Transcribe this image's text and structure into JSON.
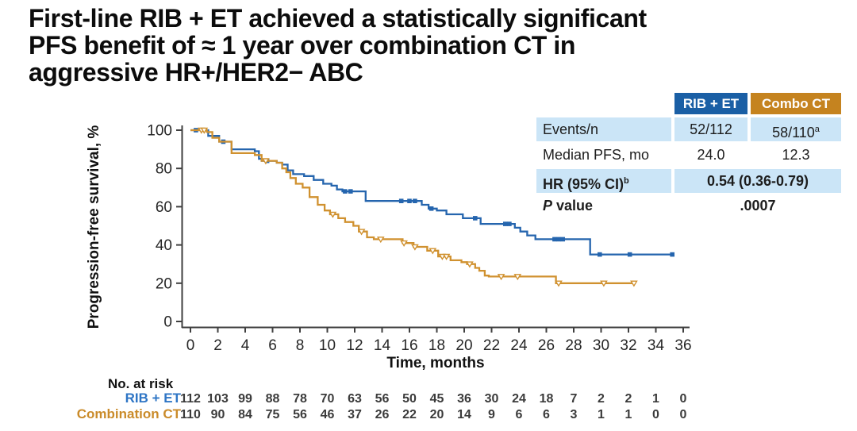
{
  "title": {
    "line1": "First-line RIB + ET achieved a statistically significant",
    "line2": "PFS benefit of ≈ 1 year over combination CT in",
    "line3": "aggressive HR+/HER2− ABC"
  },
  "colors": {
    "rib_blue": "#2565ae",
    "combo_orange": "#d0912f",
    "header_blue": "#1a5fa5",
    "header_orange": "#c5831f",
    "row_lightblue": "#cbe5f7",
    "axis": "#3f3f3f",
    "risk_label_blue": "#2e75c5",
    "risk_label_orange": "#ca8b2a",
    "risk_number": "#3b3b3b"
  },
  "stats_table": {
    "header": {
      "col1": "RIB + ET",
      "col2": "Combo CT"
    },
    "events": {
      "label": "Events/n",
      "rib": "52/112",
      "combo": "58/110",
      "combo_sup": "a"
    },
    "median": {
      "label": "Median PFS, mo",
      "rib": "24.0",
      "combo": "12.3"
    },
    "hr": {
      "label": "HR (95% CI)",
      "sup": "b",
      "value": "0.54 (0.36-0.79)"
    },
    "pvalue": {
      "label_p": "P",
      "label_rest": " value",
      "value": ".0007"
    }
  },
  "chart_data": {
    "type": "line",
    "subtype": "kaplan-meier-step",
    "ylabel": "Progression-free survival, %",
    "xlabel": "Time, months",
    "xlim": [
      0,
      36
    ],
    "ylim": [
      0,
      100
    ],
    "xticks": [
      0,
      2,
      4,
      6,
      8,
      10,
      12,
      14,
      16,
      18,
      20,
      22,
      24,
      26,
      28,
      30,
      32,
      34,
      36
    ],
    "yticks": [
      0,
      20,
      40,
      60,
      80,
      100
    ],
    "grid": false,
    "legend_position": "none",
    "series": [
      {
        "name": "RIB + ET",
        "color": "#2565ae",
        "marker": "filled-square",
        "median_pfs_months": 24.0,
        "steps": [
          [
            0,
            100
          ],
          [
            1.3,
            97
          ],
          [
            2.1,
            94
          ],
          [
            3.0,
            90
          ],
          [
            4.7,
            89
          ],
          [
            5.0,
            85
          ],
          [
            5.2,
            84
          ],
          [
            6.3,
            83
          ],
          [
            6.7,
            82
          ],
          [
            7.1,
            79
          ],
          [
            7.5,
            77
          ],
          [
            8.3,
            76
          ],
          [
            9.0,
            74
          ],
          [
            9.7,
            72
          ],
          [
            10.3,
            71
          ],
          [
            10.7,
            69
          ],
          [
            11.1,
            68
          ],
          [
            12.8,
            63
          ],
          [
            16.9,
            61
          ],
          [
            17.4,
            59
          ],
          [
            18.0,
            58
          ],
          [
            18.7,
            56
          ],
          [
            19.9,
            54
          ],
          [
            21.2,
            51
          ],
          [
            23.7,
            49
          ],
          [
            24.1,
            47
          ],
          [
            24.6,
            45
          ],
          [
            25.2,
            43
          ],
          [
            29.2,
            35
          ],
          [
            35.2,
            35
          ]
        ],
        "censors": [
          [
            0.4,
            100
          ],
          [
            2.4,
            94
          ],
          [
            5.6,
            84
          ],
          [
            11.3,
            68
          ],
          [
            11.7,
            68
          ],
          [
            15.4,
            63
          ],
          [
            16.0,
            63
          ],
          [
            16.4,
            63
          ],
          [
            17.6,
            59
          ],
          [
            20.8,
            54
          ],
          [
            23.0,
            51
          ],
          [
            23.3,
            51
          ],
          [
            26.6,
            43
          ],
          [
            26.9,
            43
          ],
          [
            27.2,
            43
          ],
          [
            29.9,
            35
          ],
          [
            32.1,
            35
          ],
          [
            35.2,
            35
          ]
        ]
      },
      {
        "name": "Combination CT",
        "color": "#d0912f",
        "marker": "open-triangle-down",
        "median_pfs_months": 12.3,
        "steps": [
          [
            0,
            100
          ],
          [
            1.2,
            99
          ],
          [
            1.6,
            96
          ],
          [
            2.1,
            94
          ],
          [
            3.0,
            88
          ],
          [
            4.7,
            87
          ],
          [
            5.2,
            84
          ],
          [
            6.3,
            83
          ],
          [
            6.7,
            80
          ],
          [
            7.0,
            78
          ],
          [
            7.3,
            75
          ],
          [
            7.7,
            72
          ],
          [
            8.2,
            70
          ],
          [
            8.7,
            65
          ],
          [
            9.3,
            61
          ],
          [
            9.8,
            58
          ],
          [
            10.2,
            56
          ],
          [
            10.8,
            54
          ],
          [
            11.3,
            52
          ],
          [
            11.9,
            50
          ],
          [
            12.3,
            47
          ],
          [
            12.9,
            44
          ],
          [
            13.4,
            43
          ],
          [
            15.5,
            41
          ],
          [
            16.3,
            39
          ],
          [
            17.3,
            37
          ],
          [
            18.1,
            34
          ],
          [
            19.0,
            32
          ],
          [
            19.8,
            31
          ],
          [
            20.2,
            30
          ],
          [
            20.8,
            28
          ],
          [
            21.1,
            26.5
          ],
          [
            21.5,
            24
          ],
          [
            21.8,
            23.5
          ],
          [
            26.7,
            20
          ],
          [
            32.4,
            20
          ]
        ],
        "censors": [
          [
            0.8,
            100
          ],
          [
            1.0,
            100
          ],
          [
            5.5,
            84
          ],
          [
            10.4,
            56
          ],
          [
            12.5,
            47
          ],
          [
            13.9,
            43
          ],
          [
            15.6,
            41
          ],
          [
            16.4,
            39
          ],
          [
            17.7,
            37
          ],
          [
            18.4,
            34
          ],
          [
            18.7,
            34
          ],
          [
            20.4,
            30
          ],
          [
            22.7,
            23.5
          ],
          [
            23.9,
            23.5
          ],
          [
            26.9,
            20
          ],
          [
            30.2,
            20
          ],
          [
            32.4,
            20
          ]
        ]
      }
    ],
    "no_at_risk": {
      "label": "No. at risk",
      "rows": [
        {
          "name": "RIB + ET",
          "color": "#2e75c5",
          "values": [
            112,
            103,
            99,
            88,
            78,
            70,
            63,
            56,
            50,
            45,
            36,
            30,
            24,
            18,
            7,
            2,
            2,
            1,
            0
          ]
        },
        {
          "name": "Combination CT",
          "color": "#ca8b2a",
          "values": [
            110,
            90,
            84,
            75,
            56,
            46,
            37,
            26,
            22,
            20,
            14,
            9,
            6,
            6,
            3,
            1,
            1,
            0,
            0
          ]
        }
      ]
    }
  }
}
